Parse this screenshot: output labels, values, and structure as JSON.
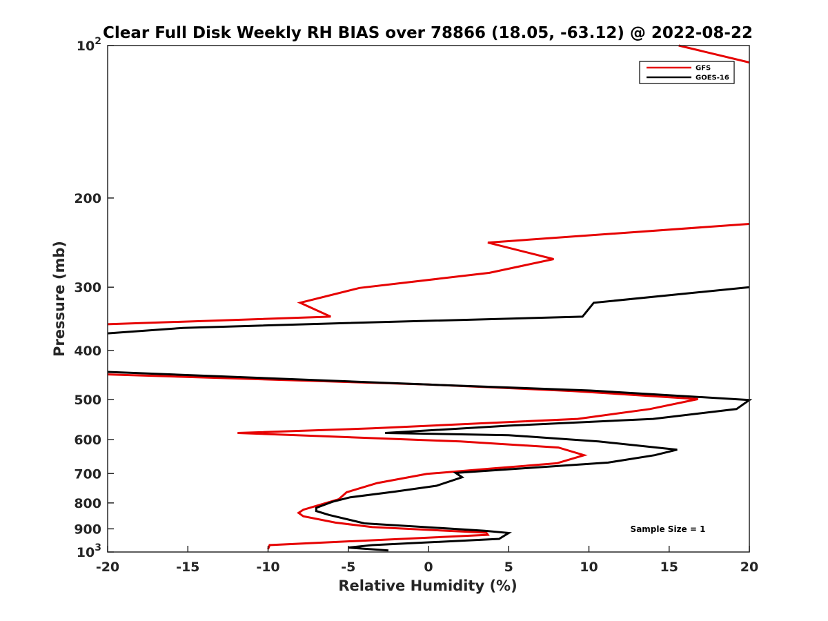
{
  "chart_data": {
    "type": "line",
    "title": "Clear Full Disk Weekly RH BIAS over 78866 (18.05, -63.12) @ 2022-08-22",
    "xlabel": "Relative Humidity (%)",
    "ylabel": "Pressure (mb)",
    "xlim": [
      -20,
      20
    ],
    "ylim": [
      100,
      1000
    ],
    "y_scale": "log",
    "y_reversed": true,
    "grid": false,
    "legend_position": "top-right",
    "x_ticks": [
      {
        "value": -20,
        "label": "-20"
      },
      {
        "value": -15,
        "label": "-15"
      },
      {
        "value": -10,
        "label": "-10"
      },
      {
        "value": -5,
        "label": "-5"
      },
      {
        "value": 0,
        "label": "0"
      },
      {
        "value": 5,
        "label": "5"
      },
      {
        "value": 10,
        "label": "10"
      },
      {
        "value": 15,
        "label": "15"
      },
      {
        "value": 20,
        "label": "20"
      }
    ],
    "y_ticks": [
      {
        "value": 100,
        "base": "10",
        "exp": "2"
      },
      {
        "value": 200,
        "label": "200"
      },
      {
        "value": 300,
        "label": "300"
      },
      {
        "value": 400,
        "label": "400"
      },
      {
        "value": 500,
        "label": "500"
      },
      {
        "value": 600,
        "label": "600"
      },
      {
        "value": 700,
        "label": "700"
      },
      {
        "value": 800,
        "label": "800"
      },
      {
        "value": 900,
        "label": "900"
      },
      {
        "value": 1000,
        "base": "10",
        "exp": "3"
      }
    ],
    "series": [
      {
        "name": "GFS",
        "color": "#e60000",
        "segments": [
          [
            [
              15.6,
              100
            ],
            [
              20,
              108
            ]
          ],
          [
            [
              20,
              225
            ],
            [
              3.7,
              245
            ],
            [
              7.8,
              264
            ],
            [
              3.8,
              281
            ],
            [
              -4.3,
              301
            ],
            [
              -8,
              322
            ],
            [
              -6.1,
              343
            ],
            [
              -20,
              355
            ]
          ],
          [
            [
              -20,
              446
            ],
            [
              0,
              467
            ],
            [
              9,
              481
            ],
            [
              16.8,
              499
            ],
            [
              13.8,
              522
            ],
            [
              9.3,
              546
            ],
            [
              -3.5,
              570
            ],
            [
              -11.9,
              582
            ],
            [
              2,
              605
            ],
            [
              8.1,
              622
            ],
            [
              9.7,
              644
            ],
            [
              8,
              668
            ],
            [
              4,
              684
            ],
            [
              -0.1,
              701
            ],
            [
              -3.2,
              731
            ],
            [
              -5.1,
              762
            ],
            [
              -5.6,
              787
            ],
            [
              -7.8,
              825
            ],
            [
              -8.1,
              837
            ],
            [
              -7.8,
              850
            ],
            [
              -5.8,
              875
            ],
            [
              -3.5,
              893
            ],
            [
              3.6,
              916
            ],
            [
              3.7,
              925
            ],
            [
              -9.9,
              969
            ],
            [
              -10,
              987
            ]
          ]
        ]
      },
      {
        "name": "GOES-16",
        "color": "#000000",
        "segments": [
          [
            [
              20,
              300
            ],
            [
              10.3,
              322
            ],
            [
              9.6,
              343
            ],
            [
              -5,
              353
            ],
            [
              -15.3,
              361
            ],
            [
              -20,
              370
            ]
          ],
          [
            [
              -20,
              441
            ],
            [
              0,
              467
            ],
            [
              10.1,
              480
            ],
            [
              20,
              501
            ],
            [
              19.2,
              522
            ],
            [
              14,
              546
            ],
            [
              5,
              563
            ],
            [
              -2.7,
              582
            ],
            [
              5,
              588
            ],
            [
              10.6,
              605
            ],
            [
              15.5,
              628
            ],
            [
              14.1,
              644
            ],
            [
              11.2,
              666
            ],
            [
              5.8,
              684
            ],
            [
              1.7,
              698
            ],
            [
              2.1,
              712
            ],
            [
              0.5,
              740
            ],
            [
              -2.1,
              760
            ],
            [
              -4.9,
              780
            ],
            [
              -6,
              796
            ],
            [
              -7,
              818
            ],
            [
              -7,
              830
            ],
            [
              -6.2,
              845
            ],
            [
              -4,
              878
            ],
            [
              3.5,
              908
            ],
            [
              5,
              917
            ],
            [
              4.4,
              942
            ],
            [
              -3.5,
              969
            ],
            [
              -5,
              980
            ],
            [
              -2.5,
              993
            ]
          ]
        ]
      }
    ],
    "annotations": [
      {
        "text": "Sample Size = 1"
      }
    ]
  }
}
